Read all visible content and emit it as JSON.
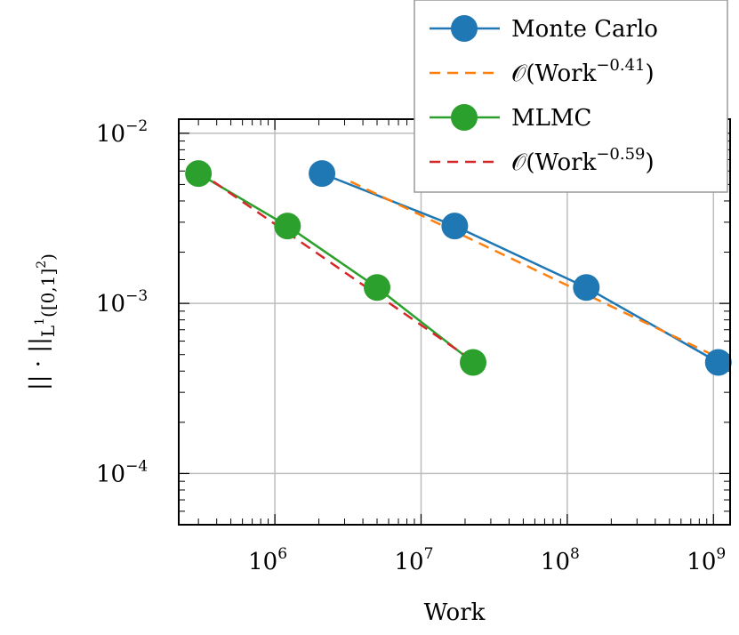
{
  "chart_data": {
    "type": "line",
    "title": "",
    "xlabel": "Work",
    "ylabel": "||·||_{L^1([0,1]^2)}",
    "xscale": "log",
    "yscale": "log",
    "xlim": [
      220000,
      1300000000
    ],
    "ylim": [
      5e-05,
      0.0121
    ],
    "grid": true,
    "legend_position": "top-right",
    "x_ticks": [
      {
        "value": 1000000,
        "base": "10",
        "exp": "6"
      },
      {
        "value": 10000000,
        "base": "10",
        "exp": "7"
      },
      {
        "value": 100000000,
        "base": "10",
        "exp": "8"
      },
      {
        "value": 1000000000,
        "base": "10",
        "exp": "9"
      }
    ],
    "y_ticks": [
      {
        "value": 0.01,
        "base": "10",
        "exp": "−2"
      },
      {
        "value": 0.001,
        "base": "10",
        "exp": "−3"
      },
      {
        "value": 0.0001,
        "base": "10",
        "exp": "−4"
      }
    ],
    "series": [
      {
        "name": "Monte Carlo",
        "color": "#1f77b4",
        "style": "solid-marker",
        "x": [
          2100000,
          17000000,
          135000000,
          1080000000
        ],
        "y": [
          0.0058,
          0.00285,
          0.00124,
          0.00045
        ]
      },
      {
        "name": "𝒪(Work",
        "name_exp": "−0.41",
        "name_suffix": ")",
        "color": "#ff7f0e",
        "style": "dashed",
        "x": [
          3300000,
          1080000000
        ],
        "y": [
          0.0052,
          0.00048
        ]
      },
      {
        "name": "MLMC",
        "color": "#2ca02c",
        "style": "solid-marker",
        "x": [
          300000,
          1220000,
          5000000,
          22700000
        ],
        "y": [
          0.0058,
          0.00285,
          0.00124,
          0.00045
        ]
      },
      {
        "name": "𝒪(Work",
        "name_exp": "−0.59",
        "name_suffix": ")",
        "color": "#d62728",
        "style": "dashed",
        "x": [
          380000,
          21000000
        ],
        "y": [
          0.0052,
          0.00048
        ]
      }
    ]
  }
}
